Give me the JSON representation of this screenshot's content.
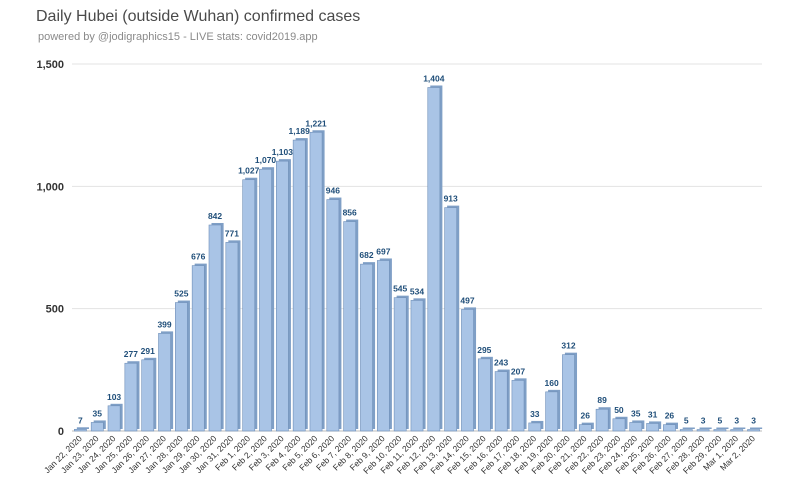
{
  "chart_data": {
    "type": "bar",
    "title": "Daily Hubei (outside Wuhan) confirmed cases",
    "subtitle": "powered by @jodigraphics15 - LIVE stats: covid2019.app",
    "ylim": [
      0,
      1500
    ],
    "yticks": [
      0,
      500,
      1000,
      1500
    ],
    "ytick_labels": [
      "0",
      "500",
      "1,000",
      "1,500"
    ],
    "grid": true,
    "bar_color": "#a9c4e6",
    "bar_edge_color": "#6f8fb8",
    "label_color": "#1f4e79",
    "categories": [
      "Jan 22, 2020",
      "Jan 23, 2020",
      "Jan 24, 2020",
      "Jan 25, 2020",
      "Jan 26, 2020",
      "Jan 27, 2020",
      "Jan 28, 2020",
      "Jan 29, 2020",
      "Jan 30, 2020",
      "Jan 31, 2020",
      "Feb 1, 2020",
      "Feb 2, 2020",
      "Feb 3, 2020",
      "Feb 4, 2020",
      "Feb 5, 2020",
      "Feb 6, 2020",
      "Feb 7, 2020",
      "Feb 8, 2020",
      "Feb 9, 2020",
      "Feb 10, 2020",
      "Feb 11, 2020",
      "Feb 12, 2020",
      "Feb 13, 2020",
      "Feb 14, 2020",
      "Feb 15, 2020",
      "Feb 16, 2020",
      "Feb 17, 2020",
      "Feb 18, 2020",
      "Feb 19, 2020",
      "Feb 20, 2020",
      "Feb 21, 2020",
      "Feb 22, 2020",
      "Feb 23, 2020",
      "Feb 24, 2020",
      "Feb 25, 2020",
      "Feb 26, 2020",
      "Feb 27, 2020",
      "Feb 28, 2020",
      "Feb 29, 2020",
      "Mar 1, 2020",
      "Mar 2, 2020"
    ],
    "values": [
      7,
      35,
      103,
      277,
      291,
      399,
      525,
      676,
      842,
      771,
      1027,
      1070,
      1103,
      1189,
      1221,
      946,
      856,
      682,
      697,
      545,
      534,
      1404,
      913,
      497,
      295,
      243,
      207,
      33,
      160,
      312,
      26,
      89,
      50,
      35,
      31,
      26,
      5,
      3,
      5,
      3,
      3
    ],
    "value_labels": [
      "7",
      "35",
      "103",
      "277",
      "291",
      "399",
      "525",
      "676",
      "842",
      "771",
      "1,027",
      "1,070",
      "1,103",
      "1,189",
      "1,221",
      "946",
      "856",
      "682",
      "697",
      "545",
      "534",
      "1,404",
      "913",
      "497",
      "295",
      "243",
      "207",
      "33",
      "160",
      "312",
      "26",
      "89",
      "50",
      "35",
      "31",
      "26",
      "5",
      "3",
      "5",
      "3",
      "3"
    ]
  }
}
